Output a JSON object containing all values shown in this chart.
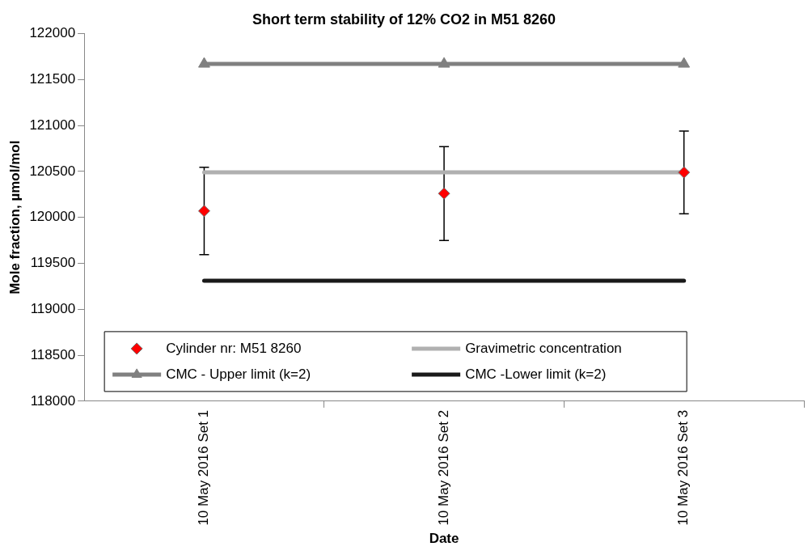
{
  "chart_data": {
    "type": "line",
    "title": "Short term stability of 12% CO2 in M51 8260",
    "xlabel": "Date",
    "ylabel": "Mole fraction, µmol/mol",
    "categories": [
      "10 May 2016 Set 1",
      "10 May 2016 Set 2",
      "10 May 2016 Set 3"
    ],
    "series": [
      {
        "name": "Cylinder nr: M51 8260",
        "type": "scatter",
        "marker": "diamond",
        "color": "#ff0000",
        "values": [
          120070,
          120260,
          120490
        ],
        "errors": [
          475,
          510,
          450
        ]
      },
      {
        "name": "Gravimetric concentration",
        "type": "line",
        "marker": "none",
        "line_style": "solid",
        "color": "#b0b0b0",
        "values": [
          120490,
          120490,
          120490
        ]
      },
      {
        "name": "CMC - Upper limit (k=2)",
        "type": "line",
        "marker": "triangle",
        "line_style": "solid",
        "color": "#808080",
        "values": [
          121670,
          121670,
          121670
        ]
      },
      {
        "name": "CMC -Lower limit (k=2)",
        "type": "line",
        "marker": "none",
        "line_style": "solid",
        "color": "#1a1a1a",
        "values": [
          119310,
          119310,
          119310
        ]
      }
    ],
    "ylim": [
      118000,
      122000
    ],
    "yticks": [
      118000,
      118500,
      119000,
      119500,
      120000,
      120500,
      121000,
      121500,
      122000
    ],
    "grid": false,
    "legend": "bottom"
  }
}
